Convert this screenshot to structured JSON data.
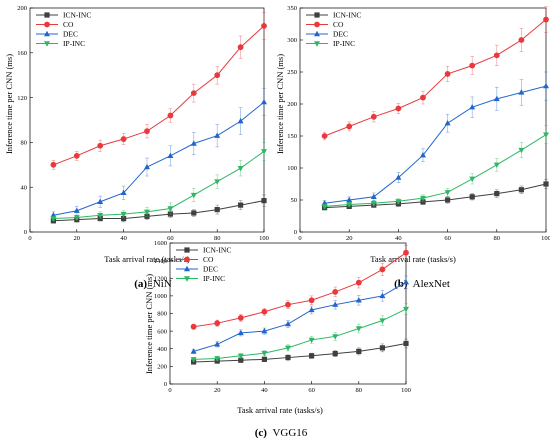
{
  "chart_data": [
    {
      "type": "line",
      "caption_letter": "(a)",
      "caption_name": "NiN",
      "xlabel": "Task arrival rate (tasks/s)",
      "ylabel": "Inference time per CNN (ms)",
      "xlim": [
        0,
        100
      ],
      "ylim": [
        0,
        200
      ],
      "xticks": [
        0,
        20,
        40,
        60,
        80,
        100
      ],
      "yticks": [
        0,
        40,
        80,
        120,
        160,
        200
      ],
      "legend_position": "top-left",
      "x": [
        10,
        20,
        30,
        40,
        50,
        60,
        70,
        80,
        90,
        100
      ],
      "series": [
        {
          "name": "ICN-INC",
          "color": "#404040",
          "marker": "square",
          "values": [
            10,
            11,
            12,
            12,
            14,
            16,
            17,
            20,
            24,
            28
          ],
          "errors": [
            2,
            2,
            2,
            3,
            3,
            3,
            3,
            4,
            4,
            5
          ]
        },
        {
          "name": "CO",
          "color": "#e8393d",
          "marker": "circle",
          "values": [
            60,
            68,
            77,
            83,
            90,
            104,
            124,
            140,
            165,
            184
          ],
          "errors": [
            4,
            4,
            5,
            5,
            6,
            6,
            8,
            8,
            10,
            12
          ]
        },
        {
          "name": "DEC",
          "color": "#2266cc",
          "marker": "triangle-up",
          "values": [
            15,
            19,
            27,
            35,
            58,
            68,
            79,
            86,
            99,
            116
          ],
          "errors": [
            3,
            4,
            5,
            6,
            8,
            9,
            10,
            10,
            12,
            12
          ]
        },
        {
          "name": "IP-INC",
          "color": "#2db862",
          "marker": "triangle-down",
          "values": [
            12,
            13,
            15,
            16,
            18,
            21,
            33,
            45,
            57,
            72
          ],
          "errors": [
            2,
            2,
            3,
            3,
            4,
            5,
            6,
            6,
            7,
            8
          ]
        }
      ]
    },
    {
      "type": "line",
      "caption_letter": "(b)",
      "caption_name": "AlexNet",
      "xlabel": "Task arrival rate (tasks/s)",
      "ylabel": "Inference time per CNN (ms)",
      "xlim": [
        0,
        100
      ],
      "ylim": [
        0,
        350
      ],
      "xticks": [
        0,
        20,
        40,
        60,
        80,
        100
      ],
      "yticks": [
        0,
        50,
        100,
        150,
        200,
        250,
        300,
        350
      ],
      "legend_position": "top-left",
      "x": [
        10,
        20,
        30,
        40,
        50,
        60,
        70,
        80,
        90,
        100
      ],
      "series": [
        {
          "name": "ICN-INC",
          "color": "#404040",
          "marker": "square",
          "values": [
            38,
            40,
            42,
            44,
            47,
            50,
            55,
            60,
            66,
            75
          ],
          "errors": [
            3,
            3,
            3,
            4,
            4,
            5,
            5,
            6,
            6,
            7
          ]
        },
        {
          "name": "CO",
          "color": "#e8393d",
          "marker": "circle",
          "values": [
            150,
            165,
            180,
            193,
            210,
            247,
            260,
            276,
            300,
            332
          ],
          "errors": [
            6,
            7,
            8,
            8,
            10,
            12,
            14,
            16,
            18,
            20
          ]
        },
        {
          "name": "DEC",
          "color": "#2266cc",
          "marker": "triangle-up",
          "values": [
            45,
            50,
            55,
            85,
            120,
            170,
            195,
            208,
            218,
            228
          ],
          "errors": [
            4,
            5,
            6,
            8,
            10,
            14,
            16,
            18,
            20,
            22
          ]
        },
        {
          "name": "IP-INC",
          "color": "#2db862",
          "marker": "triangle-down",
          "values": [
            40,
            43,
            45,
            48,
            53,
            62,
            83,
            105,
            128,
            152
          ],
          "errors": [
            3,
            3,
            4,
            4,
            5,
            6,
            8,
            10,
            12,
            14
          ]
        }
      ]
    },
    {
      "type": "line",
      "caption_letter": "(c)",
      "caption_name": "VGG16",
      "xlabel": "Task arrival rate (tasks/s)",
      "ylabel": "Inference time per CNN (ms)",
      "xlim": [
        0,
        100
      ],
      "ylim": [
        0,
        1600
      ],
      "xticks": [
        0,
        20,
        40,
        60,
        80,
        100
      ],
      "yticks": [
        0,
        200,
        400,
        600,
        800,
        1000,
        1200,
        1400,
        1600
      ],
      "legend_position": "top-left",
      "x": [
        10,
        20,
        30,
        40,
        50,
        60,
        70,
        80,
        90,
        100
      ],
      "series": [
        {
          "name": "ICN-INC",
          "color": "#404040",
          "marker": "square",
          "values": [
            250,
            260,
            270,
            280,
            300,
            320,
            345,
            370,
            410,
            460
          ],
          "errors": [
            20,
            20,
            25,
            25,
            30,
            30,
            35,
            40,
            45,
            50
          ]
        },
        {
          "name": "CO",
          "color": "#e8393d",
          "marker": "circle",
          "values": [
            650,
            690,
            750,
            820,
            900,
            950,
            1045,
            1150,
            1300,
            1490
          ],
          "errors": [
            30,
            35,
            40,
            40,
            45,
            50,
            55,
            60,
            70,
            80
          ]
        },
        {
          "name": "DEC",
          "color": "#2266cc",
          "marker": "triangle-up",
          "values": [
            370,
            450,
            580,
            600,
            680,
            840,
            900,
            950,
            1000,
            1155
          ],
          "errors": [
            25,
            30,
            35,
            35,
            40,
            45,
            50,
            55,
            60,
            70
          ]
        },
        {
          "name": "IP-INC",
          "color": "#2db862",
          "marker": "triangle-down",
          "values": [
            280,
            290,
            320,
            350,
            410,
            500,
            540,
            630,
            720,
            850
          ],
          "errors": [
            20,
            25,
            25,
            30,
            35,
            40,
            45,
            50,
            55,
            60
          ]
        }
      ]
    }
  ]
}
